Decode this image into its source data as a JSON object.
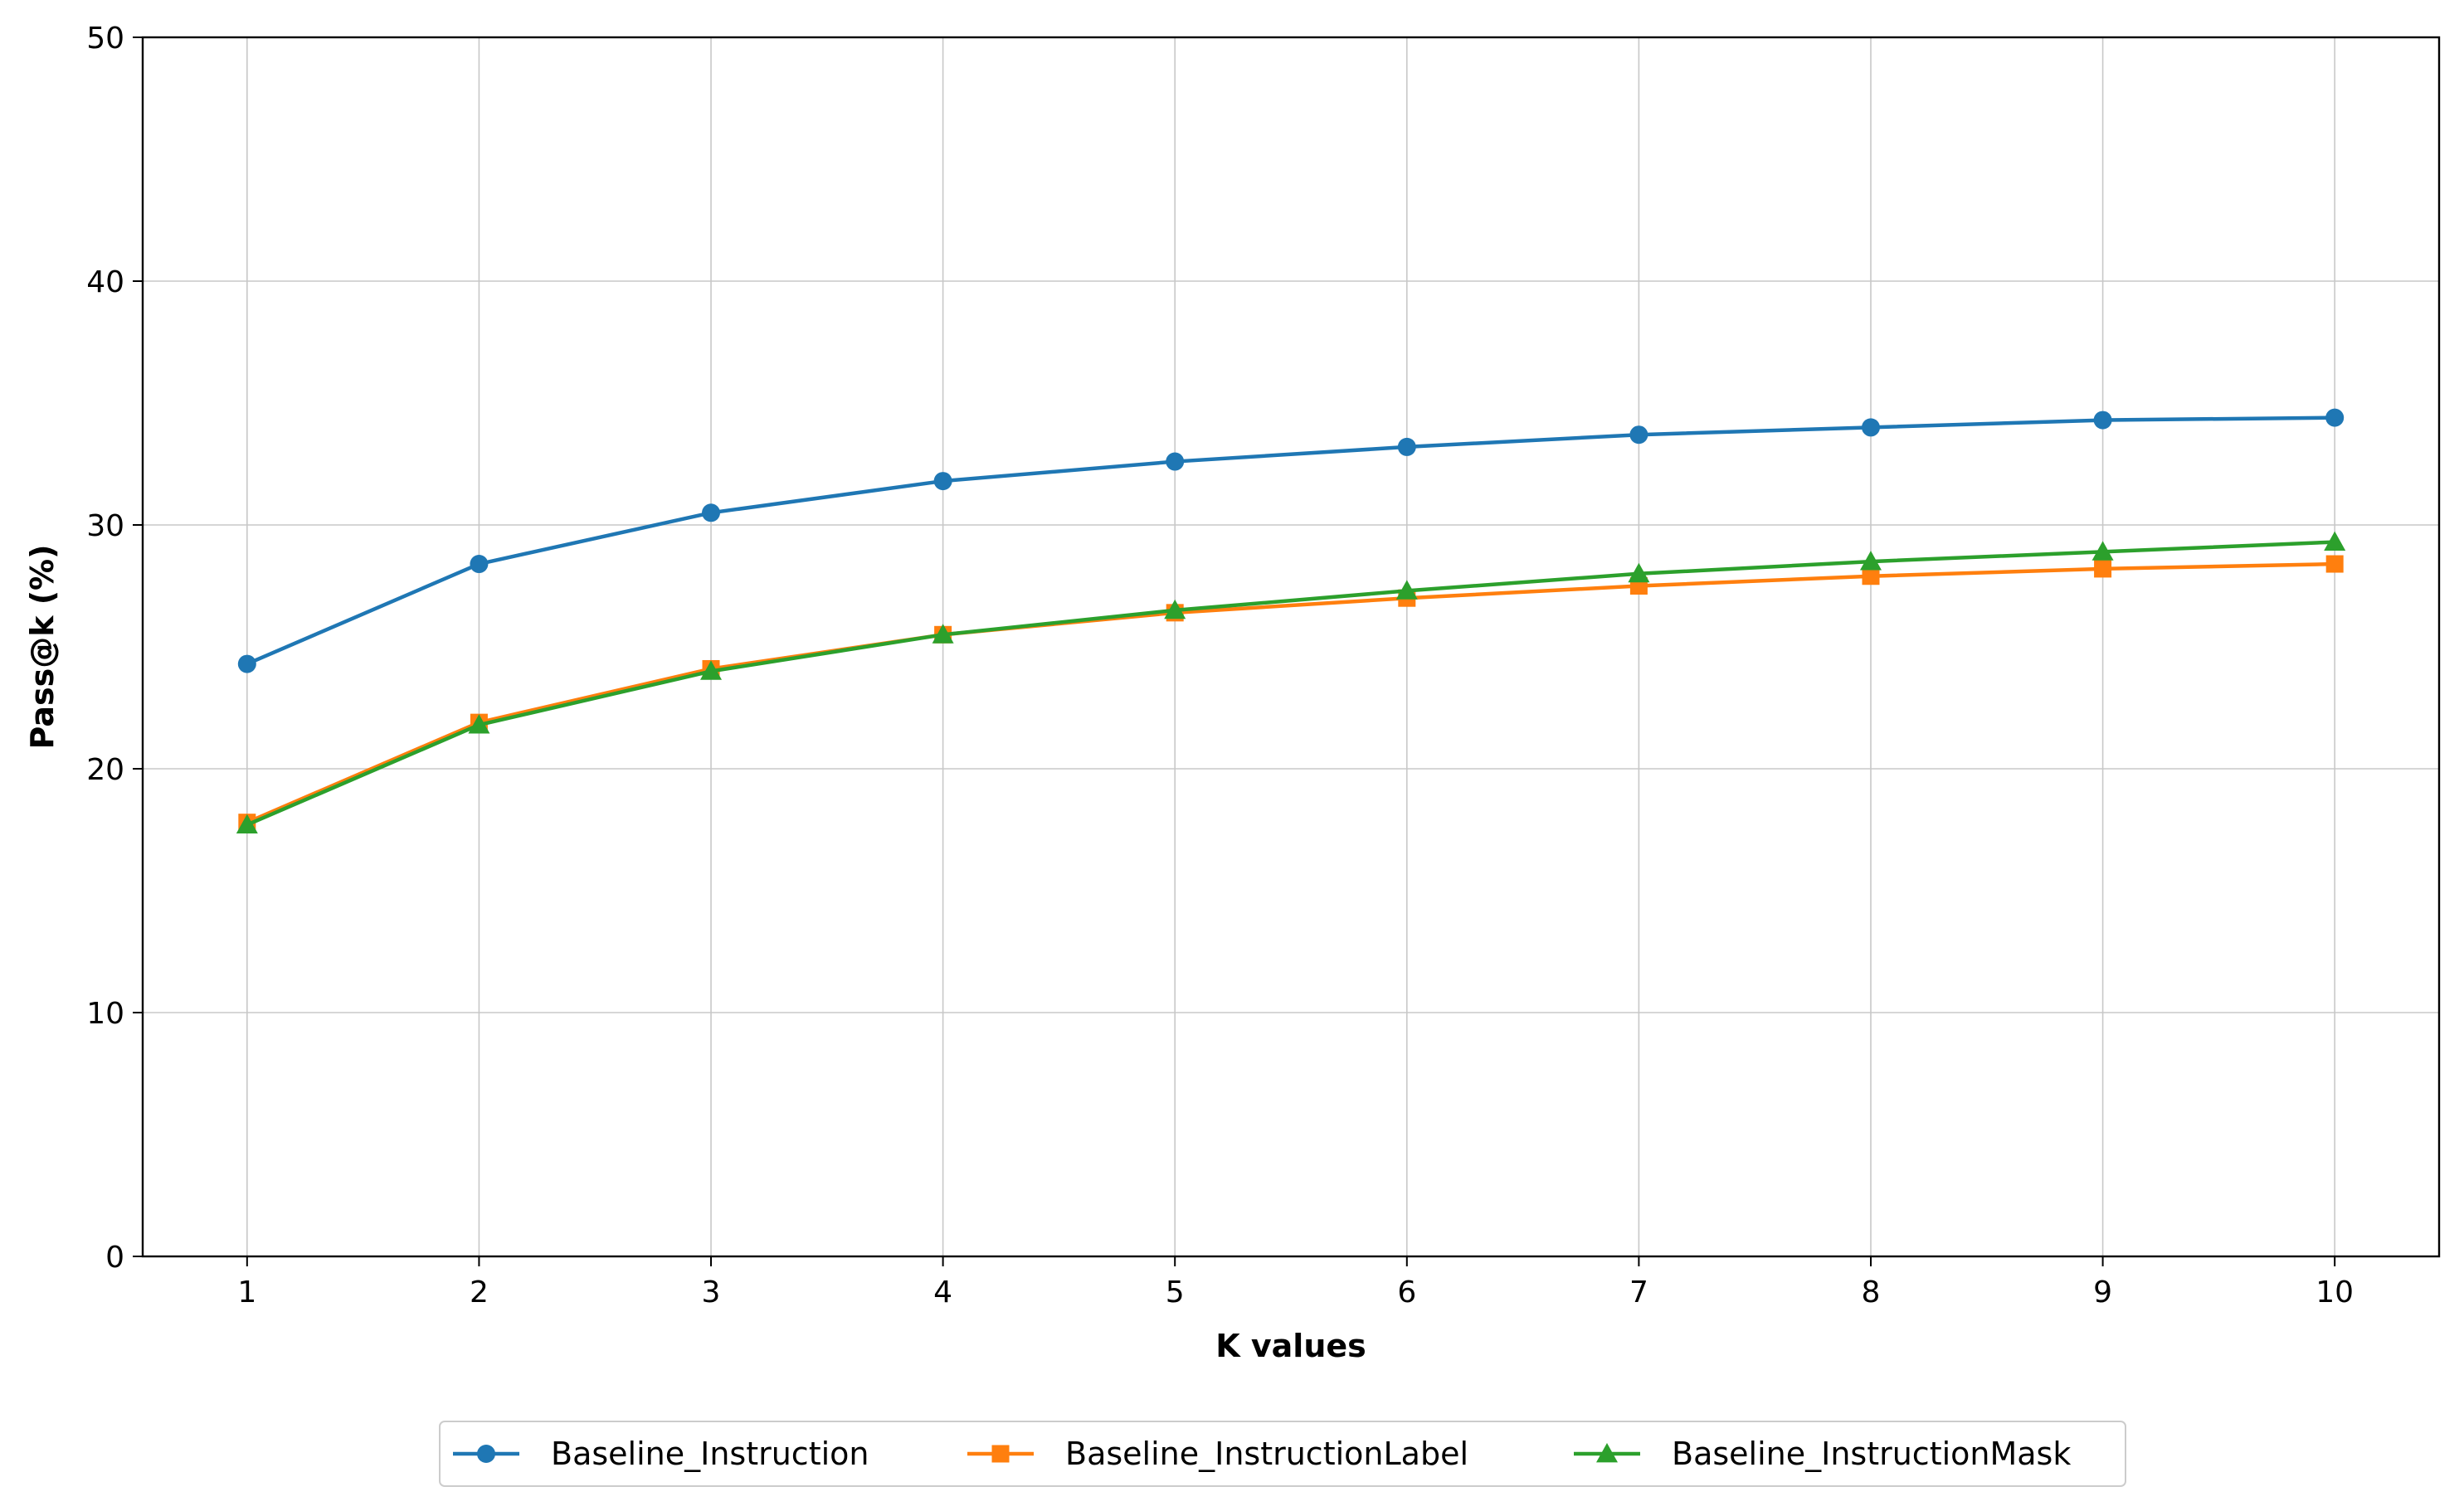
{
  "chart_data": {
    "type": "line",
    "xlabel": "K values",
    "ylabel": "Pass@k (%)",
    "x": [
      1,
      2,
      3,
      4,
      5,
      6,
      7,
      8,
      9,
      10
    ],
    "xticks": [
      "1",
      "2",
      "3",
      "4",
      "5",
      "6",
      "7",
      "8",
      "9",
      "10"
    ],
    "xlim": [
      0.55,
      10.45
    ],
    "ylim": [
      0,
      50
    ],
    "yticks": [
      "0",
      "10",
      "20",
      "30",
      "40",
      "50"
    ],
    "grid": true,
    "legend_position": "bottom-center",
    "series": [
      {
        "name": "Baseline_Instruction",
        "color": "#1f77b4",
        "marker": "circle",
        "values": [
          24.3,
          28.4,
          30.5,
          31.8,
          32.6,
          33.2,
          33.7,
          34.0,
          34.3,
          34.4
        ]
      },
      {
        "name": "Baseline_InstructionLabel",
        "color": "#ff7f0e",
        "marker": "square",
        "values": [
          17.8,
          21.9,
          24.1,
          25.5,
          26.4,
          27.0,
          27.5,
          27.9,
          28.2,
          28.4
        ]
      },
      {
        "name": "Baseline_InstructionMask",
        "color": "#2ca02c",
        "marker": "triangle",
        "values": [
          17.7,
          21.8,
          24.0,
          25.5,
          26.5,
          27.3,
          28.0,
          28.5,
          28.9,
          29.3
        ]
      }
    ]
  }
}
